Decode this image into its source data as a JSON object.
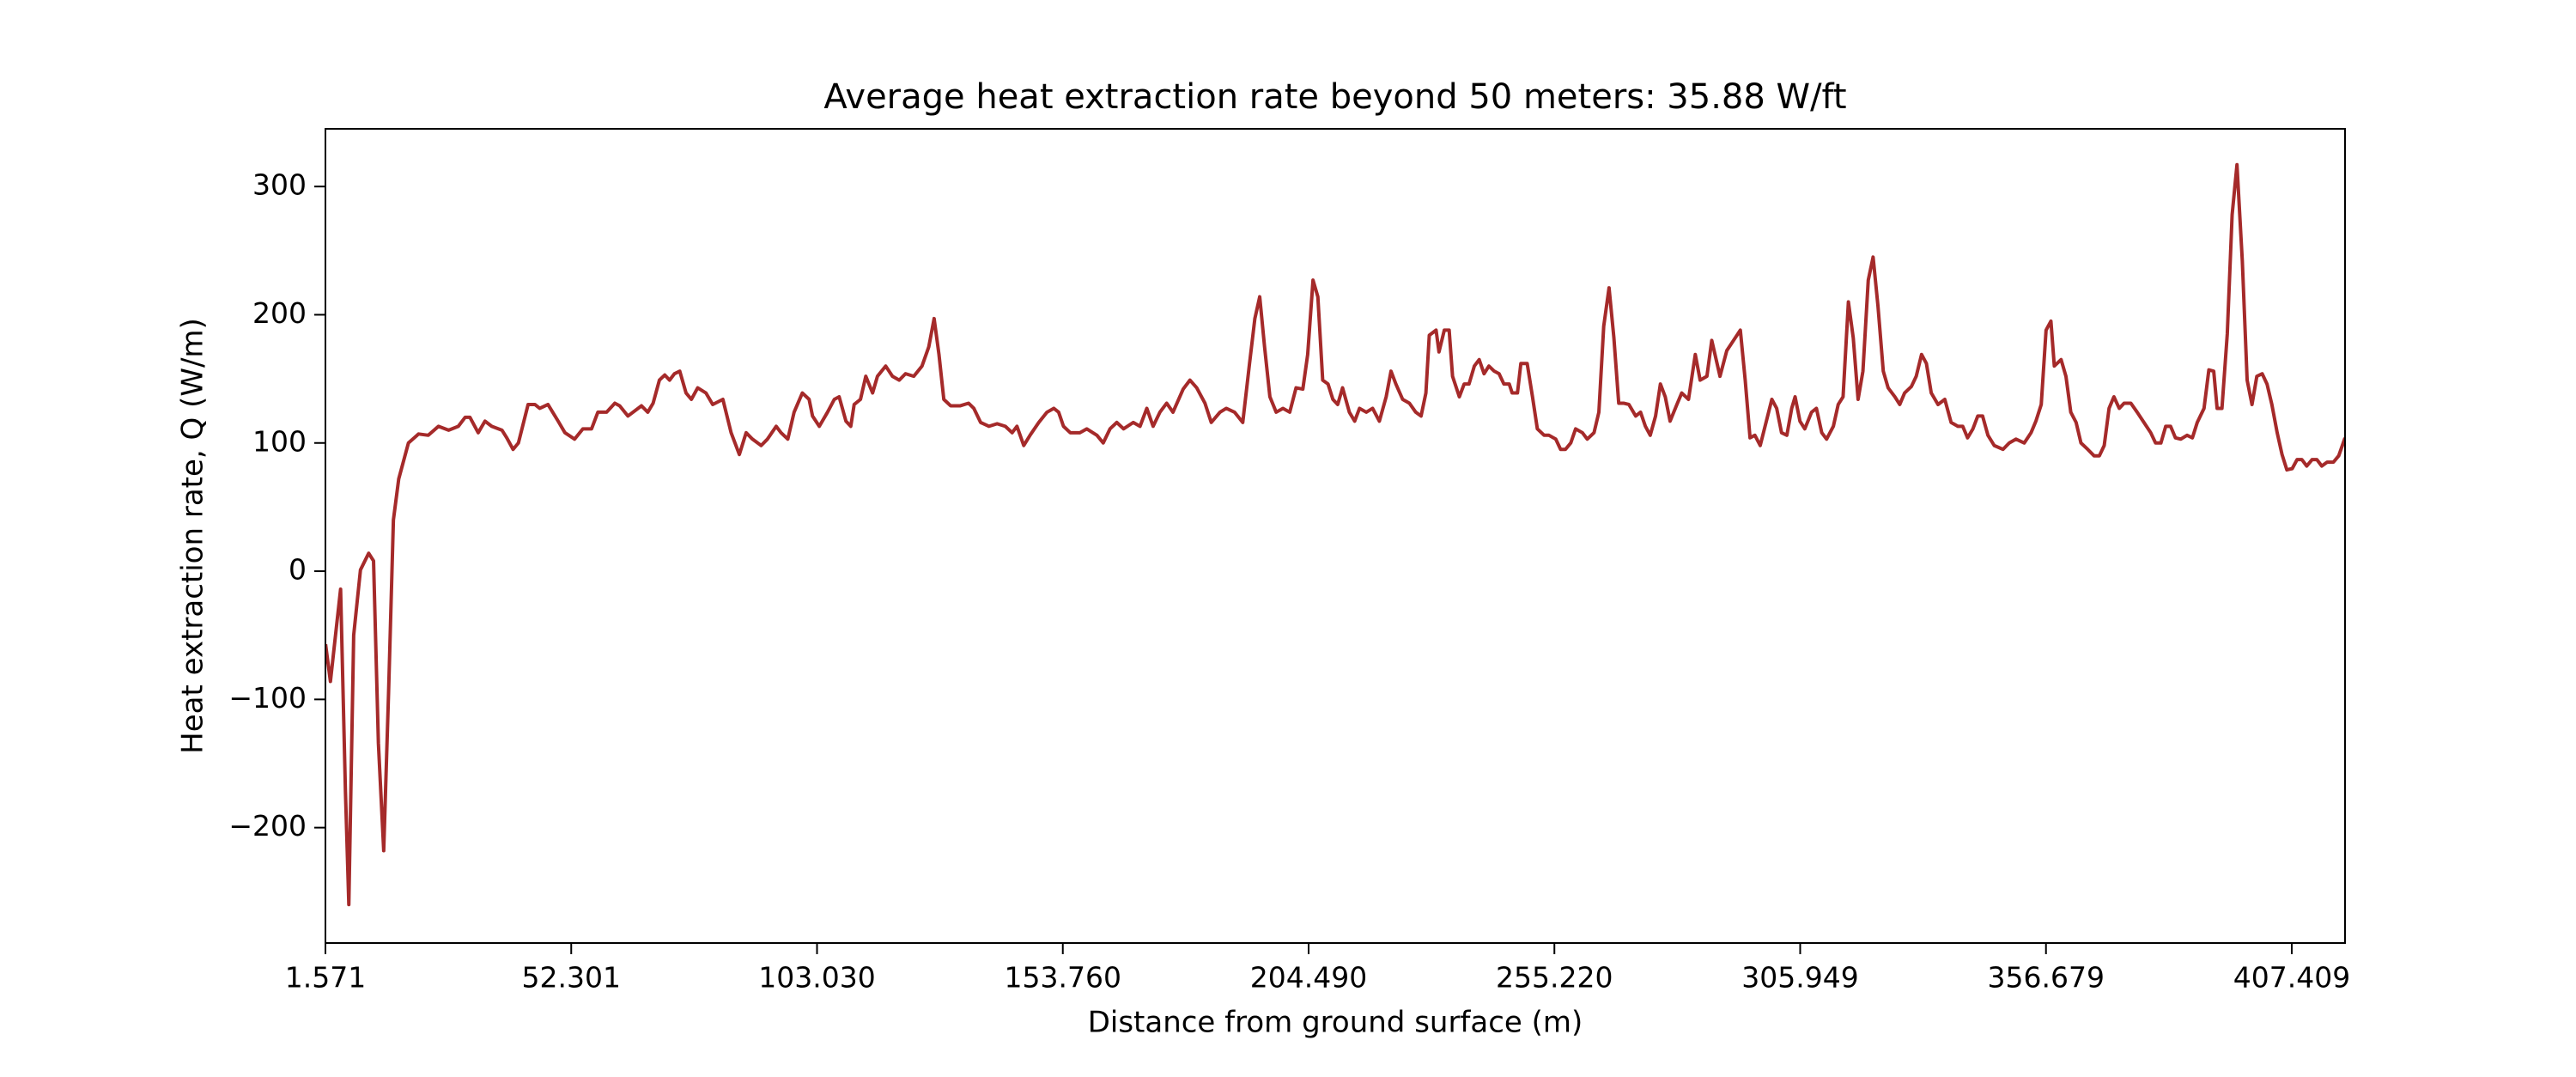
{
  "chart_data": {
    "type": "line",
    "title": "Average heat extraction rate beyond 50 meters: 35.88 W/ft",
    "x_label": "Distance from ground surface (m)",
    "y_label": "Heat extraction rate, Q (W/m)",
    "xlim": [
      1.571,
      418.4
    ],
    "ylim": [
      -290,
      345
    ],
    "xticks": [
      1.571,
      52.301,
      {
        "value": 103.03,
        "label": "103.030"
      },
      {
        "value": 153.76,
        "label": "153.760"
      },
      {
        "value": 204.49,
        "label": "204.490"
      },
      {
        "value": 255.22,
        "label": "255.220"
      },
      305.949,
      356.679,
      407.409
    ],
    "yticks": [
      {
        "value": -200,
        "label": "−200"
      },
      {
        "value": -100,
        "label": "−100"
      },
      0,
      100,
      200,
      300
    ],
    "grid": false,
    "x": [
      1.6,
      2.6,
      4.7,
      5.7,
      6.4,
      7.4,
      8.8,
      10.5,
      11.5,
      12.5,
      13.6,
      14.6,
      15.6,
      16.7,
      18.7,
      20.8,
      22.8,
      24.9,
      27.0,
      29.0,
      30.4,
      31.4,
      33.1,
      34.5,
      35.9,
      38.0,
      39.0,
      40.3,
      41.4,
      43.4,
      44.8,
      45.8,
      47.5,
      49.6,
      51.0,
      53.0,
      54.7,
      56.5,
      57.8,
      59.6,
      61.3,
      62.3,
      64.0,
      66.8,
      68.1,
      69.2,
      70.5,
      71.6,
      72.6,
      73.6,
      74.7,
      76.0,
      77.1,
      78.4,
      80.1,
      81.5,
      83.6,
      85.3,
      87.0,
      88.4,
      89.7,
      91.5,
      92.8,
      94.6,
      95.6,
      97.0,
      98.3,
      100.0,
      101.4,
      102.1,
      103.5,
      105.2,
      106.6,
      107.6,
      109.0,
      110.0,
      110.7,
      112.0,
      113.1,
      114.5,
      115.5,
      117.2,
      118.6,
      120.0,
      121.3,
      123.0,
      124.7,
      126.1,
      127.2,
      128.2,
      129.2,
      130.6,
      132.6,
      134.3,
      135.4,
      136.8,
      138.5,
      140.2,
      141.9,
      143.3,
      144.3,
      145.7,
      147.0,
      148.8,
      150.5,
      151.9,
      152.9,
      153.9,
      155.3,
      157.3,
      158.7,
      160.8,
      162.1,
      163.5,
      164.9,
      166.3,
      168.3,
      169.7,
      171.1,
      172.4,
      173.8,
      175.2,
      176.5,
      178.6,
      180.0,
      181.4,
      183.1,
      184.4,
      186.2,
      187.5,
      189.2,
      190.9,
      192.3,
      193.4,
      194.4,
      195.4,
      196.5,
      197.8,
      199.2,
      200.6,
      201.9,
      203.3,
      204.3,
      205.4,
      206.4,
      207.4,
      208.5,
      209.5,
      210.5,
      211.5,
      212.9,
      214.0,
      215.0,
      216.4,
      217.7,
      219.1,
      220.5,
      221.5,
      222.5,
      223.9,
      225.3,
      226.6,
      227.7,
      228.7,
      229.4,
      230.8,
      231.4,
      232.5,
      233.5,
      234.2,
      235.6,
      236.6,
      237.6,
      238.7,
      239.7,
      240.7,
      241.7,
      242.8,
      243.8,
      244.8,
      245.9,
      246.5,
      247.6,
      248.3,
      249.6,
      250.7,
      251.7,
      253.1,
      254.1,
      255.5,
      256.5,
      257.5,
      258.6,
      259.6,
      261.0,
      262.0,
      263.4,
      264.4,
      265.4,
      266.5,
      267.5,
      268.5,
      269.5,
      270.6,
      272.0,
      273.0,
      274.0,
      275.0,
      276.1,
      277.1,
      278.1,
      279.1,
      280.5,
      281.5,
      282.9,
      284.3,
      285.3,
      286.7,
      287.7,
      289.4,
      290.8,
      292.2,
      293.6,
      294.6,
      295.6,
      296.6,
      297.7,
      298.7,
      300.1,
      301.1,
      302.1,
      303.2,
      304.2,
      304.9,
      305.9,
      306.9,
      308.3,
      309.3,
      310.4,
      311.4,
      312.8,
      313.8,
      314.8,
      315.9,
      316.9,
      317.9,
      318.9,
      320.0,
      321.0,
      322.0,
      323.1,
      324.1,
      325.5,
      326.5,
      327.5,
      328.9,
      329.9,
      331.0,
      332.0,
      333.0,
      334.4,
      335.8,
      337.1,
      338.5,
      339.5,
      340.5,
      341.6,
      342.6,
      343.6,
      344.7,
      346.0,
      347.8,
      349.1,
      350.5,
      352.2,
      353.6,
      354.6,
      355.7,
      356.7,
      357.7,
      358.4,
      359.8,
      360.8,
      361.8,
      362.9,
      363.9,
      365.3,
      366.6,
      367.7,
      368.7,
      369.7,
      370.7,
      371.8,
      372.8,
      374.2,
      375.5,
      376.9,
      378.3,
      379.3,
      380.4,
      381.4,
      382.4,
      383.4,
      384.5,
      385.8,
      386.9,
      387.9,
      389.3,
      390.3,
      391.3,
      392.0,
      393.0,
      394.1,
      395.1,
      396.1,
      397.2,
      398.2,
      399.2,
      400.2,
      401.3,
      402.3,
      403.3,
      404.4,
      405.4,
      406.4,
      407.5,
      408.5,
      409.5,
      410.5,
      411.6,
      412.6,
      413.6,
      414.7,
      416.0,
      417.1,
      418.4
    ],
    "series": [
      {
        "name": "Q",
        "color": "#a52a2a",
        "values": [
          -57,
          -86,
          -14,
          -172,
          -260,
          -50,
          1,
          14,
          8,
          -134,
          -218,
          -95,
          40,
          72,
          100,
          107,
          106,
          113,
          110,
          113,
          120,
          120,
          108,
          117,
          113,
          110,
          104,
          95,
          100,
          130,
          130,
          127,
          130,
          117,
          108,
          103,
          111,
          111,
          124,
          124,
          131,
          129,
          121,
          129,
          124,
          131,
          149,
          153,
          149,
          154,
          156,
          139,
          134,
          143,
          139,
          130,
          134,
          108,
          91,
          108,
          103,
          98,
          103,
          113,
          108,
          103,
          124,
          139,
          134,
          121,
          113,
          124,
          134,
          136,
          117,
          113,
          130,
          134,
          152,
          139,
          152,
          160,
          152,
          149,
          154,
          152,
          160,
          175,
          197,
          169,
          134,
          129,
          129,
          131,
          127,
          116,
          113,
          115,
          113,
          108,
          113,
          98,
          106,
          116,
          124,
          127,
          124,
          113,
          108,
          108,
          111,
          106,
          100,
          111,
          116,
          111,
          116,
          113,
          127,
          113,
          124,
          131,
          124,
          142,
          149,
          143,
          131,
          116,
          124,
          127,
          124,
          116,
          162,
          197,
          214,
          175,
          136,
          124,
          127,
          124,
          143,
          142,
          169,
          227,
          214,
          149,
          146,
          134,
          130,
          143,
          124,
          117,
          127,
          124,
          127,
          117,
          136,
          156,
          146,
          134,
          131,
          124,
          121,
          139,
          184,
          188,
          171,
          188,
          188,
          152,
          136,
          146,
          146,
          160,
          165,
          154,
          160,
          156,
          154,
          146,
          146,
          139,
          139,
          162,
          162,
          136,
          111,
          106,
          106,
          103,
          95,
          95,
          100,
          111,
          108,
          103,
          108,
          124,
          191,
          221,
          182,
          131,
          131,
          130,
          121,
          124,
          113,
          106,
          121,
          146,
          136,
          117,
          130,
          139,
          134,
          169,
          149,
          152,
          180,
          152,
          172,
          180,
          188,
          149,
          104,
          106,
          98,
          113,
          134,
          127,
          108,
          106,
          127,
          136,
          117,
          111,
          124,
          127,
          108,
          103,
          113,
          130,
          136,
          210,
          182,
          134,
          156,
          227,
          245,
          207,
          156,
          143,
          136,
          130,
          139,
          144,
          152,
          169,
          162,
          139,
          130,
          134,
          116,
          113,
          113,
          104,
          111,
          121,
          121,
          106,
          98,
          95,
          100,
          103,
          100,
          108,
          117,
          130,
          188,
          195,
          160,
          165,
          152,
          124,
          116,
          100,
          95,
          90,
          90,
          98,
          127,
          136,
          127,
          131,
          131,
          124,
          116,
          108,
          100,
          100,
          113,
          113,
          104,
          103,
          106,
          104,
          116,
          127,
          157,
          156,
          127,
          127,
          185,
          278,
          317,
          242,
          149,
          130,
          152,
          154,
          146,
          130,
          108,
          91,
          79,
          80,
          87,
          87,
          82,
          87,
          87,
          82,
          85,
          85,
          90,
          104
        ]
      }
    ]
  }
}
